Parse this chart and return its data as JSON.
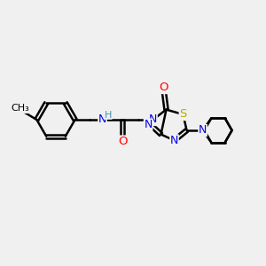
{
  "background_color": "#f0f0f0",
  "bond_color": "#000000",
  "bond_width": 1.8,
  "atom_colors": {
    "N": "#0000ee",
    "O": "#ff0000",
    "S": "#bbaa00",
    "H": "#4499aa",
    "C": "#000000"
  },
  "font_size": 8.5,
  "fig_width": 3.0,
  "fig_height": 3.0,
  "dpi": 100
}
